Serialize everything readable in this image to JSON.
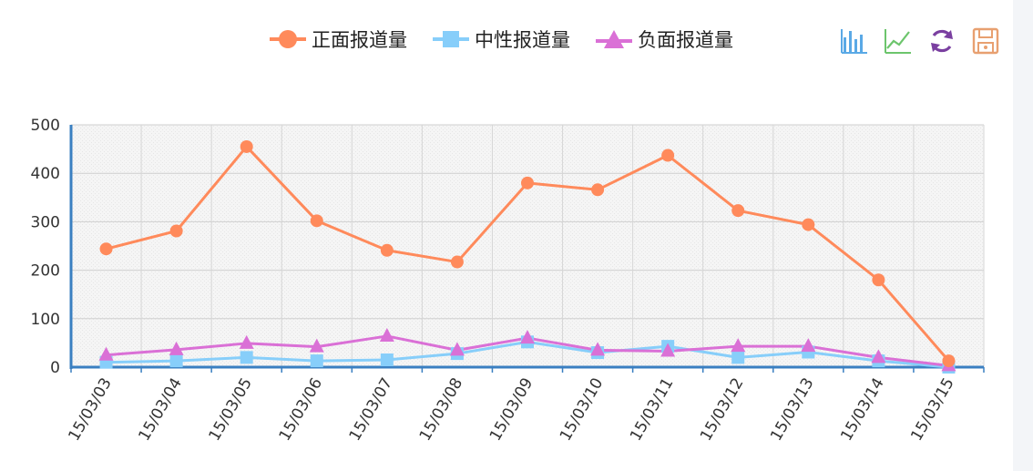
{
  "legend": {
    "items": [
      {
        "label": "正面报道量",
        "color": "#ff8a5b",
        "marker": "circle"
      },
      {
        "label": "中性报道量",
        "color": "#87cefa",
        "marker": "square"
      },
      {
        "label": "负面报道量",
        "color": "#da70d6",
        "marker": "triangle"
      }
    ]
  },
  "toolbar": {
    "tools": [
      {
        "icon": "bar-chart-icon",
        "color": "#5aa9e6"
      },
      {
        "icon": "line-chart-icon",
        "color": "#6cc56c"
      },
      {
        "icon": "refresh-icon",
        "color": "#7a3fa0"
      },
      {
        "icon": "save-icon",
        "color": "#e8a070"
      }
    ]
  },
  "chart_data": {
    "type": "line",
    "categories": [
      "15/03/03",
      "15/03/04",
      "15/03/05",
      "15/03/06",
      "15/03/07",
      "15/03/08",
      "15/03/09",
      "15/03/10",
      "15/03/11",
      "15/03/12",
      "15/03/13",
      "15/03/14",
      "15/03/15"
    ],
    "series": [
      {
        "name": "正面报道量",
        "color": "#ff8a5b",
        "marker": "circle",
        "values": [
          244,
          281,
          455,
          302,
          241,
          217,
          380,
          366,
          437,
          323,
          294,
          180,
          13
        ]
      },
      {
        "name": "中性报道量",
        "color": "#87cefa",
        "marker": "square",
        "values": [
          10,
          13,
          20,
          13,
          15,
          28,
          52,
          30,
          43,
          20,
          31,
          13,
          0
        ]
      },
      {
        "name": "负面报道量",
        "color": "#da70d6",
        "marker": "triangle",
        "values": [
          25,
          36,
          49,
          42,
          64,
          35,
          60,
          35,
          33,
          43,
          43,
          20,
          3
        ]
      }
    ],
    "y_ticks": [
      0,
      100,
      200,
      300,
      400,
      500
    ],
    "ylim": [
      0,
      500
    ],
    "grid": true,
    "legend_position": "top-center",
    "title": "",
    "xlabel": "",
    "ylabel": ""
  }
}
